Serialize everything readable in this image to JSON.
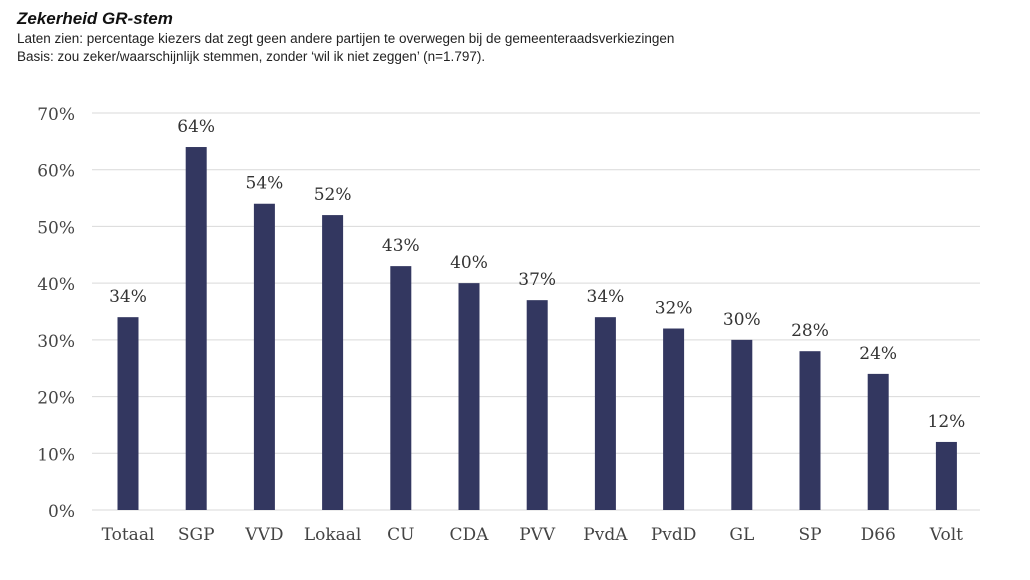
{
  "header": {
    "title": "Zekerheid GR-stem",
    "subtitle": "Laten zien: percentage kiezers dat zegt geen andere partijen te overwegen bij de gemeenteraadsverkiezingen",
    "basis": "Basis: zou zeker/waarschijnlijk stemmen, zonder ‘wil ik niet zeggen’ (n=1.797)."
  },
  "chart_data": {
    "type": "bar",
    "title": "Zekerheid GR-stem",
    "xlabel": "",
    "ylabel": "",
    "categories": [
      "Totaal",
      "SGP",
      "VVD",
      "Lokaal",
      "CU",
      "CDA",
      "PVV",
      "PvdA",
      "PvdD",
      "GL",
      "SP",
      "D66",
      "Volt"
    ],
    "values": [
      34,
      64,
      54,
      52,
      43,
      40,
      37,
      34,
      32,
      30,
      28,
      24,
      12
    ],
    "value_labels": [
      "34%",
      "64%",
      "54%",
      "52%",
      "43%",
      "40%",
      "37%",
      "34%",
      "32%",
      "30%",
      "28%",
      "24%",
      "12%"
    ],
    "y_ticks": [
      0,
      10,
      20,
      30,
      40,
      50,
      60,
      70
    ],
    "y_tick_labels": [
      "0%",
      "10%",
      "20%",
      "30%",
      "40%",
      "50%",
      "60%",
      "70%"
    ],
    "ylim": [
      0,
      70
    ],
    "grid": true,
    "legend": "none",
    "bar_color": "#333760",
    "grid_color": "#d9d9d9"
  }
}
